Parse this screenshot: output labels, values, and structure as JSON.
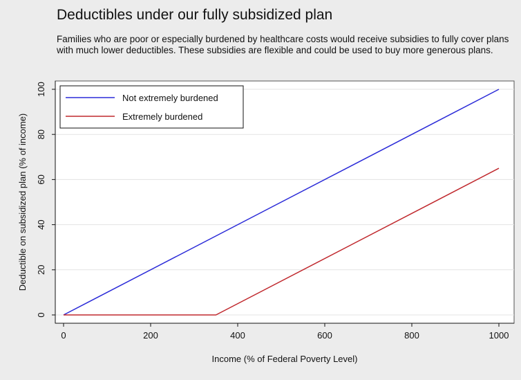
{
  "chart_data": {
    "type": "line",
    "title": "Deductibles under our fully subsidized plan",
    "subtitle": "Families who are poor or especially burdened by healthcare costs would receive subsidies to fully cover plans with much lower deductibles. These subsidies are flexible and could be used to buy more generous plans.",
    "xlabel": "Income (% of Federal Poverty Level)",
    "ylabel": "Deductible on subsidized plan (% of income)",
    "xlim": [
      0,
      1000
    ],
    "ylim": [
      0,
      100
    ],
    "x_ticks": [
      0,
      200,
      400,
      600,
      800,
      1000
    ],
    "y_ticks": [
      0,
      20,
      40,
      60,
      80,
      100
    ],
    "x_tick_labels": [
      "0",
      "200",
      "400",
      "600",
      "800",
      "1000"
    ],
    "y_tick_labels": [
      "0",
      "20",
      "40",
      "60",
      "80",
      "100"
    ],
    "grid": "horizontal",
    "legend_position": "top-left",
    "series": [
      {
        "name": "Not extremely burdened",
        "color": "#2b2bd8",
        "points": [
          [
            0,
            0
          ],
          [
            1000,
            100
          ]
        ]
      },
      {
        "name": "Extremely burdened",
        "color": "#c0282d",
        "points": [
          [
            0,
            0
          ],
          [
            350,
            0
          ],
          [
            1000,
            65
          ]
        ]
      }
    ]
  }
}
